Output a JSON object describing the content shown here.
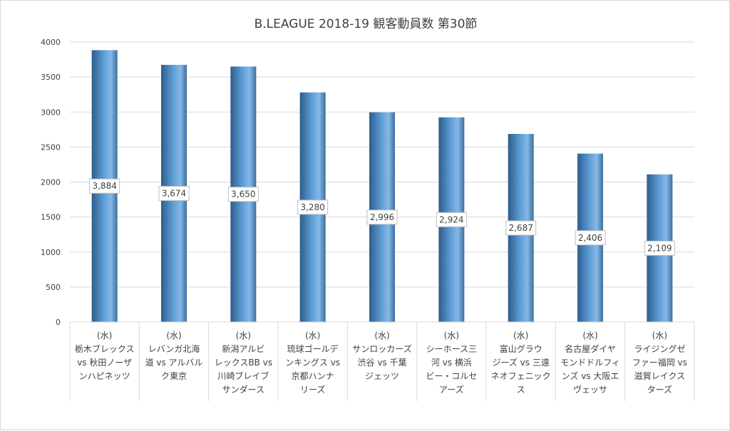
{
  "chart_data": {
    "type": "bar",
    "title": "B.LEAGUE 2018-19 観客動員数 第30節",
    "xlabel": "",
    "ylabel": "",
    "ylim": [
      0,
      4000
    ],
    "yticks": [
      0,
      500,
      1000,
      1500,
      2000,
      2500,
      3000,
      3500,
      4000
    ],
    "grid": true,
    "legend": "none",
    "bar_color": "#5b9bd5",
    "categories": [
      [
        "(水)",
        "栃木ブレックス",
        "vs 秋田ノーザ",
        "ンハピネッツ"
      ],
      [
        "(水)",
        "レバンガ北海",
        "道 vs アルバル",
        "ク東京"
      ],
      [
        "(水)",
        "新潟アルビ",
        "レックスBB vs",
        "川崎ブレイブ",
        "サンダース"
      ],
      [
        "(水)",
        "琉球ゴールデ",
        "ンキングス vs",
        "京都ハンナ",
        "リーズ"
      ],
      [
        "(水)",
        "サンロッカーズ",
        "渋谷 vs 千葉",
        "ジェッツ"
      ],
      [
        "(水)",
        "シーホース三",
        "河 vs 横浜",
        "ビー・コルセ",
        "アーズ"
      ],
      [
        "(水)",
        "富山グラウ",
        "ジーズ vs 三遠",
        "ネオフェニック",
        "ス"
      ],
      [
        "(水)",
        "名古屋ダイヤ",
        "モンドドルフィ",
        "ンズ vs 大阪エ",
        "ヴェッサ"
      ],
      [
        "(水)",
        "ライジングゼ",
        "ファー福岡 vs",
        "滋賀レイクス",
        "ターズ"
      ]
    ],
    "values": [
      3884,
      3674,
      3650,
      3280,
      2996,
      2924,
      2687,
      2406,
      2109
    ],
    "data_labels": [
      "3,884",
      "3,674",
      "3,650",
      "3,280",
      "2,996",
      "2,924",
      "2,687",
      "2,406",
      "2,109"
    ]
  }
}
